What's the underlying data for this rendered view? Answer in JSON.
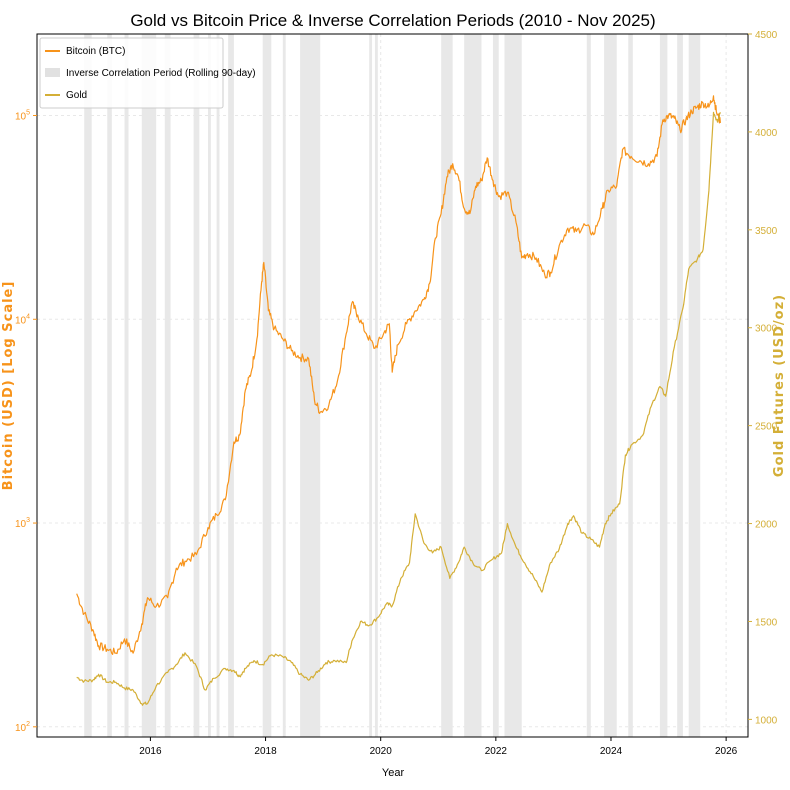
{
  "chart_data": {
    "type": "line",
    "title": "Gold vs Bitcoin Price & Inverse Correlation Periods (2010 - Nov 2025)",
    "xlabel": "Year",
    "ylabel_left": "Bitcoin (USD) [Log Scale]",
    "ylabel_right": "Gold Futures (USD/oz)",
    "x_ticks": [
      "2016",
      "2018",
      "2020",
      "2022",
      "2024",
      "2026"
    ],
    "y_left_ticks": [
      {
        "base": "10",
        "exp": "2"
      },
      {
        "base": "10",
        "exp": "3"
      },
      {
        "base": "10",
        "exp": "4"
      },
      {
        "base": "10",
        "exp": "5"
      }
    ],
    "y_right_ticks": [
      "1000",
      "1500",
      "2000",
      "2500",
      "3000",
      "3500",
      "4000",
      "4500"
    ],
    "xlim": [
      2014.03,
      2026.38
    ],
    "ylim_left_log10": [
      1.95,
      5.4
    ],
    "ylim_right": [
      910,
      4500
    ],
    "grid": true,
    "legend_position": "top-left",
    "legend": [
      "Bitcoin (BTC)",
      "Inverse Correlation Period (Rolling 90-day)",
      "Gold"
    ],
    "colors": {
      "bitcoin": "#f7931a",
      "gold": "#d4af37",
      "shade": "#d9d9d9",
      "grid": "#e8e8e8"
    },
    "series": [
      {
        "name": "Bitcoin (BTC)",
        "axis": "left-log",
        "points": [
          [
            2014.72,
            450
          ],
          [
            2014.85,
            360
          ],
          [
            2015.0,
            300
          ],
          [
            2015.1,
            250
          ],
          [
            2015.25,
            240
          ],
          [
            2015.4,
            230
          ],
          [
            2015.55,
            270
          ],
          [
            2015.7,
            230
          ],
          [
            2015.85,
            320
          ],
          [
            2015.95,
            430
          ],
          [
            2016.1,
            390
          ],
          [
            2016.3,
            430
          ],
          [
            2016.45,
            600
          ],
          [
            2016.6,
            650
          ],
          [
            2016.8,
            700
          ],
          [
            2017.0,
            950
          ],
          [
            2017.15,
            1100
          ],
          [
            2017.3,
            1300
          ],
          [
            2017.45,
            2500
          ],
          [
            2017.55,
            2700
          ],
          [
            2017.65,
            4500
          ],
          [
            2017.75,
            5500
          ],
          [
            2017.85,
            8000
          ],
          [
            2017.93,
            15000
          ],
          [
            2017.97,
            19000
          ],
          [
            2018.05,
            11000
          ],
          [
            2018.15,
            9000
          ],
          [
            2018.3,
            8000
          ],
          [
            2018.45,
            7000
          ],
          [
            2018.6,
            6500
          ],
          [
            2018.75,
            6400
          ],
          [
            2018.85,
            4000
          ],
          [
            2018.95,
            3500
          ],
          [
            2019.1,
            3800
          ],
          [
            2019.25,
            5000
          ],
          [
            2019.4,
            8500
          ],
          [
            2019.5,
            12000
          ],
          [
            2019.6,
            10500
          ],
          [
            2019.75,
            8500
          ],
          [
            2019.9,
            7200
          ],
          [
            2020.05,
            8500
          ],
          [
            2020.15,
            9500
          ],
          [
            2020.2,
            5500
          ],
          [
            2020.3,
            7500
          ],
          [
            2020.45,
            9500
          ],
          [
            2020.6,
            11000
          ],
          [
            2020.75,
            12500
          ],
          [
            2020.85,
            15000
          ],
          [
            2020.95,
            25000
          ],
          [
            2021.05,
            33000
          ],
          [
            2021.15,
            50000
          ],
          [
            2021.25,
            58000
          ],
          [
            2021.35,
            50000
          ],
          [
            2021.45,
            35000
          ],
          [
            2021.55,
            33000
          ],
          [
            2021.65,
            45000
          ],
          [
            2021.75,
            48000
          ],
          [
            2021.85,
            62000
          ],
          [
            2021.95,
            48000
          ],
          [
            2022.05,
            40000
          ],
          [
            2022.2,
            42000
          ],
          [
            2022.35,
            30000
          ],
          [
            2022.45,
            20000
          ],
          [
            2022.55,
            21000
          ],
          [
            2022.7,
            20000
          ],
          [
            2022.85,
            16500
          ],
          [
            2022.95,
            17000
          ],
          [
            2023.1,
            23000
          ],
          [
            2023.25,
            28000
          ],
          [
            2023.4,
            27000
          ],
          [
            2023.55,
            29000
          ],
          [
            2023.7,
            26000
          ],
          [
            2023.85,
            35000
          ],
          [
            2023.95,
            43000
          ],
          [
            2024.1,
            45000
          ],
          [
            2024.2,
            68000
          ],
          [
            2024.35,
            63000
          ],
          [
            2024.5,
            60000
          ],
          [
            2024.65,
            58000
          ],
          [
            2024.8,
            63000
          ],
          [
            2024.9,
            95000
          ],
          [
            2025.0,
            100000
          ],
          [
            2025.1,
            97000
          ],
          [
            2025.2,
            85000
          ],
          [
            2025.3,
            95000
          ],
          [
            2025.4,
            105000
          ],
          [
            2025.5,
            110000
          ],
          [
            2025.6,
            115000
          ],
          [
            2025.7,
            110000
          ],
          [
            2025.78,
            125000
          ],
          [
            2025.83,
            105000
          ],
          [
            2025.9,
            92000
          ]
        ]
      },
      {
        "name": "Gold",
        "axis": "right",
        "points": [
          [
            2014.72,
            1215
          ],
          [
            2014.85,
            1195
          ],
          [
            2015.0,
            1200
          ],
          [
            2015.1,
            1230
          ],
          [
            2015.25,
            1190
          ],
          [
            2015.4,
            1190
          ],
          [
            2015.55,
            1160
          ],
          [
            2015.7,
            1150
          ],
          [
            2015.85,
            1080
          ],
          [
            2015.95,
            1080
          ],
          [
            2016.1,
            1170
          ],
          [
            2016.3,
            1240
          ],
          [
            2016.45,
            1280
          ],
          [
            2016.6,
            1340
          ],
          [
            2016.8,
            1270
          ],
          [
            2016.95,
            1150
          ],
          [
            2017.1,
            1210
          ],
          [
            2017.3,
            1260
          ],
          [
            2017.45,
            1250
          ],
          [
            2017.55,
            1220
          ],
          [
            2017.65,
            1260
          ],
          [
            2017.8,
            1300
          ],
          [
            2017.95,
            1280
          ],
          [
            2018.1,
            1330
          ],
          [
            2018.3,
            1320
          ],
          [
            2018.45,
            1290
          ],
          [
            2018.6,
            1230
          ],
          [
            2018.75,
            1200
          ],
          [
            2018.9,
            1240
          ],
          [
            2019.05,
            1290
          ],
          [
            2019.2,
            1300
          ],
          [
            2019.4,
            1290
          ],
          [
            2019.5,
            1400
          ],
          [
            2019.65,
            1500
          ],
          [
            2019.8,
            1480
          ],
          [
            2019.95,
            1520
          ],
          [
            2020.1,
            1590
          ],
          [
            2020.2,
            1580
          ],
          [
            2020.35,
            1720
          ],
          [
            2020.5,
            1800
          ],
          [
            2020.6,
            2050
          ],
          [
            2020.75,
            1900
          ],
          [
            2020.9,
            1850
          ],
          [
            2021.05,
            1880
          ],
          [
            2021.2,
            1720
          ],
          [
            2021.35,
            1800
          ],
          [
            2021.45,
            1880
          ],
          [
            2021.6,
            1800
          ],
          [
            2021.75,
            1760
          ],
          [
            2021.95,
            1820
          ],
          [
            2022.1,
            1850
          ],
          [
            2022.2,
            2000
          ],
          [
            2022.35,
            1880
          ],
          [
            2022.5,
            1800
          ],
          [
            2022.65,
            1730
          ],
          [
            2022.8,
            1650
          ],
          [
            2022.95,
            1800
          ],
          [
            2023.1,
            1870
          ],
          [
            2023.25,
            2000
          ],
          [
            2023.35,
            2040
          ],
          [
            2023.5,
            1950
          ],
          [
            2023.65,
            1920
          ],
          [
            2023.8,
            1880
          ],
          [
            2023.9,
            2000
          ],
          [
            2024.0,
            2050
          ],
          [
            2024.15,
            2100
          ],
          [
            2024.25,
            2350
          ],
          [
            2024.35,
            2400
          ],
          [
            2024.55,
            2450
          ],
          [
            2024.7,
            2600
          ],
          [
            2024.85,
            2700
          ],
          [
            2024.95,
            2650
          ],
          [
            2025.1,
            2900
          ],
          [
            2025.25,
            3100
          ],
          [
            2025.35,
            3300
          ],
          [
            2025.5,
            3350
          ],
          [
            2025.6,
            3400
          ],
          [
            2025.7,
            3700
          ],
          [
            2025.78,
            4100
          ],
          [
            2025.85,
            4050
          ],
          [
            2025.9,
            4100
          ]
        ]
      }
    ],
    "inverse_correlation_periods": [
      [
        2014.85,
        2014.98
      ],
      [
        2015.25,
        2015.33
      ],
      [
        2015.55,
        2015.62
      ],
      [
        2015.85,
        2016.1
      ],
      [
        2016.25,
        2016.35
      ],
      [
        2016.75,
        2016.85
      ],
      [
        2017.0,
        2017.05
      ],
      [
        2017.15,
        2017.2
      ],
      [
        2017.35,
        2017.45
      ],
      [
        2017.95,
        2018.1
      ],
      [
        2018.3,
        2018.35
      ],
      [
        2018.6,
        2018.95
      ],
      [
        2019.8,
        2019.85
      ],
      [
        2019.9,
        2019.95
      ],
      [
        2021.05,
        2021.25
      ],
      [
        2021.45,
        2021.75
      ],
      [
        2021.95,
        2022.05
      ],
      [
        2022.15,
        2022.45
      ],
      [
        2023.58,
        2023.65
      ],
      [
        2023.88,
        2024.1
      ],
      [
        2024.3,
        2024.38
      ],
      [
        2024.85,
        2024.98
      ],
      [
        2025.15,
        2025.25
      ],
      [
        2025.35,
        2025.55
      ]
    ]
  }
}
